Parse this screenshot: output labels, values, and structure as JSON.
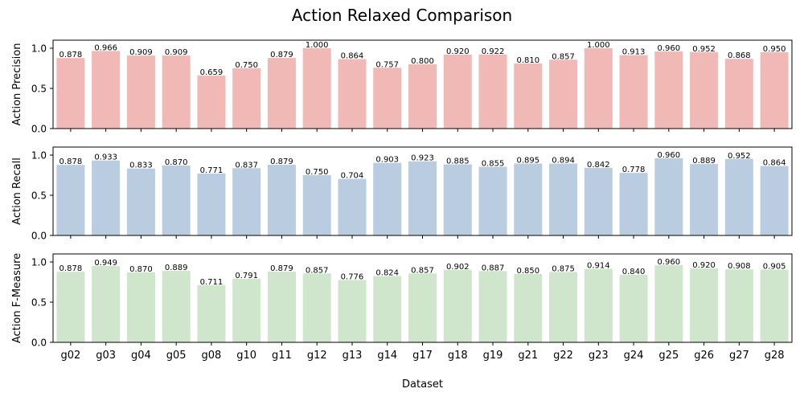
{
  "chart_data": {
    "type": "bar",
    "title": "Action Relaxed Comparison",
    "xlabel": "Dataset",
    "categories": [
      "g02",
      "g03",
      "g04",
      "g05",
      "g08",
      "g10",
      "g11",
      "g12",
      "g13",
      "g14",
      "g17",
      "g18",
      "g19",
      "g21",
      "g22",
      "g23",
      "g24",
      "g25",
      "g26",
      "g27",
      "g28"
    ],
    "ylim": [
      0,
      1.1
    ],
    "yticks": [
      "0.0",
      "0.5",
      "1.0"
    ],
    "grid": false,
    "panels": [
      {
        "ylabel": "Action Precision",
        "color": "#f1b9b5",
        "values": [
          0.878,
          0.966,
          0.909,
          0.909,
          0.659,
          0.75,
          0.879,
          1.0,
          0.864,
          0.757,
          0.8,
          0.92,
          0.922,
          0.81,
          0.857,
          1.0,
          0.913,
          0.96,
          0.952,
          0.868,
          0.95
        ],
        "labels": [
          "0.878",
          "0.966",
          "0.909",
          "0.909",
          "0.659",
          "0.750",
          "0.879",
          "1.000",
          "0.864",
          "0.757",
          "0.800",
          "0.920",
          "0.922",
          "0.810",
          "0.857",
          "1.000",
          "0.913",
          "0.960",
          "0.952",
          "0.868",
          "0.950"
        ]
      },
      {
        "ylabel": "Action Recall",
        "color": "#b9cce0",
        "values": [
          0.878,
          0.933,
          0.833,
          0.87,
          0.771,
          0.837,
          0.879,
          0.75,
          0.704,
          0.903,
          0.923,
          0.885,
          0.855,
          0.895,
          0.894,
          0.842,
          0.778,
          0.96,
          0.889,
          0.952,
          0.864
        ],
        "labels": [
          "0.878",
          "0.933",
          "0.833",
          "0.870",
          "0.771",
          "0.837",
          "0.879",
          "0.750",
          "0.704",
          "0.903",
          "0.923",
          "0.885",
          "0.855",
          "0.895",
          "0.894",
          "0.842",
          "0.778",
          "0.960",
          "0.889",
          "0.952",
          "0.864"
        ]
      },
      {
        "ylabel": "Action F-Measure",
        "color": "#cfe6cc",
        "values": [
          0.878,
          0.949,
          0.87,
          0.889,
          0.711,
          0.791,
          0.879,
          0.857,
          0.776,
          0.824,
          0.857,
          0.902,
          0.887,
          0.85,
          0.875,
          0.914,
          0.84,
          0.96,
          0.92,
          0.908,
          0.905
        ],
        "labels": [
          "0.878",
          "0.949",
          "0.870",
          "0.889",
          "0.711",
          "0.791",
          "0.879",
          "0.857",
          "0.776",
          "0.824",
          "0.857",
          "0.902",
          "0.887",
          "0.850",
          "0.875",
          "0.914",
          "0.840",
          "0.960",
          "0.920",
          "0.908",
          "0.905"
        ]
      }
    ]
  }
}
